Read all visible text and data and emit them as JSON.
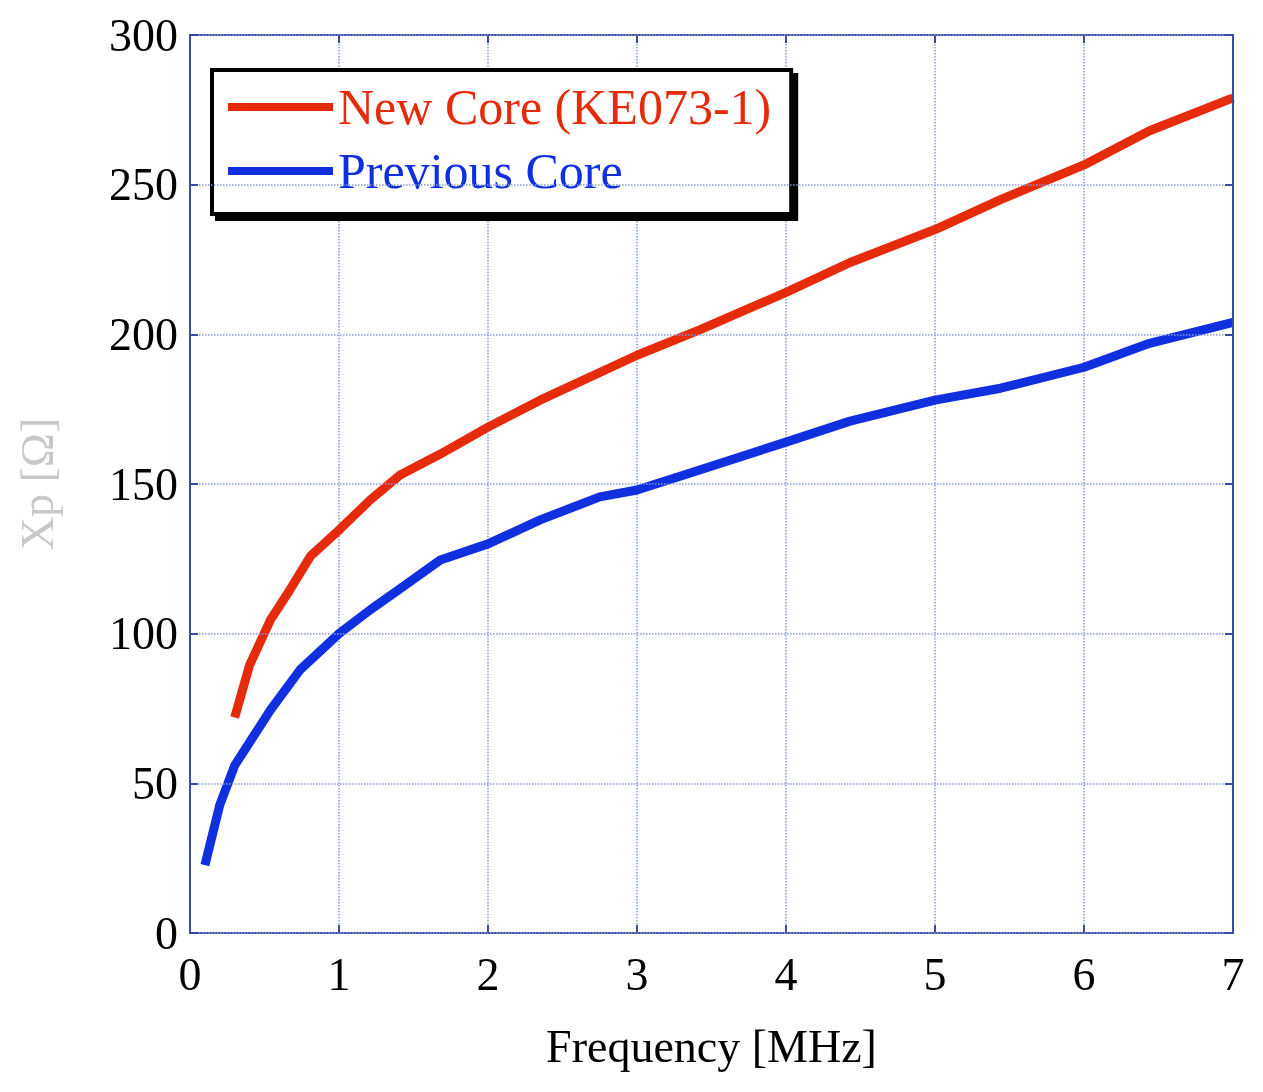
{
  "chart_data": {
    "type": "line",
    "xlabel": "Frequency [MHz]",
    "ylabel": "Xp [Ω]",
    "xlim": [
      0,
      7
    ],
    "xticks": [
      0,
      1,
      2,
      3,
      4,
      5,
      6,
      7
    ],
    "ylim": [
      0,
      300
    ],
    "yticks": [
      0,
      50,
      100,
      150,
      200,
      250,
      300
    ],
    "grid": true,
    "legend": "top left",
    "marker": "none",
    "line_style": "solid",
    "series": [
      {
        "name": "New Core (KE073-1)",
        "color": "#e62a0c",
        "x": [
          0.3,
          0.4,
          0.54,
          0.67,
          0.81,
          1.0,
          1.21,
          1.41,
          1.68,
          2.0,
          2.35,
          3.0,
          3.42,
          4.0,
          4.43,
          5.0,
          5.44,
          6.0,
          6.44,
          7.0
        ],
        "values": [
          72,
          89.5,
          104.6,
          114.6,
          126,
          134.6,
          144.7,
          153,
          160,
          169,
          178,
          193,
          201.5,
          214,
          224,
          235,
          245,
          256.6,
          268,
          279
        ]
      },
      {
        "name": "Previous Core",
        "color": "#1030e0",
        "x": [
          0.1,
          0.2,
          0.3,
          0.54,
          0.74,
          1.0,
          1.21,
          1.41,
          1.68,
          2.0,
          2.35,
          2.75,
          3.0,
          3.42,
          4.0,
          4.43,
          5.0,
          5.44,
          6.0,
          6.44,
          7.0
        ],
        "values": [
          22.7,
          42.8,
          56,
          74.5,
          88,
          100,
          108,
          115,
          124.6,
          130,
          138,
          145.7,
          148,
          154.7,
          164,
          171,
          178,
          182,
          189,
          197,
          204
        ]
      }
    ]
  }
}
